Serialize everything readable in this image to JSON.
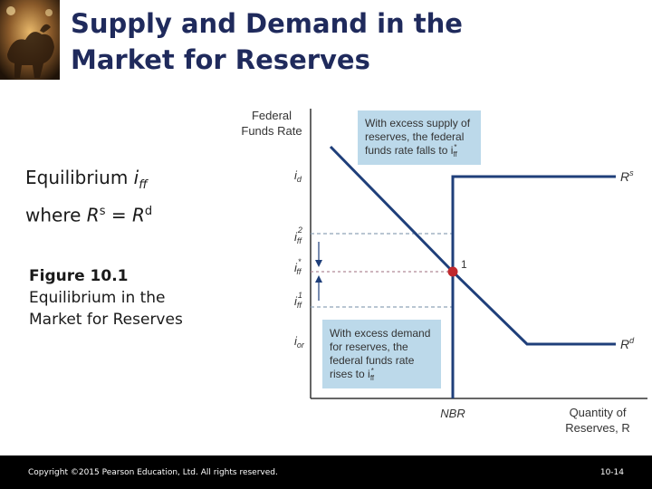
{
  "slide": {
    "title_line1": "Supply and Demand in the",
    "title_line2": "Market for Reserves",
    "title_color": "#1f2a5c",
    "equilibrium_label": "Equilibrium",
    "equilibrium_var": "i",
    "equilibrium_var_sub": "ff",
    "where_label": "where",
    "rs_var": "R",
    "rs_sup": "s",
    "equals": "=",
    "rd_var": "R",
    "rd_sup": "d",
    "figure_number": "Figure 10.1",
    "figure_title_line1": "Equilibrium in the",
    "figure_title_line2": "Market for Reserves"
  },
  "diagram": {
    "y_axis_label_line1": "Federal",
    "y_axis_label_line2": "Funds Rate",
    "x_axis_label_line1": "Quantity of",
    "x_axis_label_line2": "Reserves, R",
    "nbr_label": "NBR",
    "rs_curve_label": "R",
    "rs_curve_sup": "s",
    "rd_curve_label": "R",
    "rd_curve_sup": "d",
    "equilibrium_point_label": "1",
    "y_tick_id": "i",
    "y_tick_id_sub": "d",
    "y_tick_iff2": "i",
    "y_tick_iff2_sub": "ff",
    "y_tick_iff2_sup": "2",
    "y_tick_iffstar": "i",
    "y_tick_iffstar_sub": "ff",
    "y_tick_iffstar_sup": "*",
    "y_tick_iff1": "i",
    "y_tick_iff1_sub": "ff",
    "y_tick_iff1_sup": "1",
    "y_tick_ior": "i",
    "y_tick_ior_sub": "or",
    "box_supply_line1": "With excess supply of",
    "box_supply_line2": "reserves, the federal",
    "box_supply_line3": "funds rate falls to i",
    "box_supply_var_sub": "ff",
    "box_supply_var_sup": "*",
    "box_demand_line1": "With excess demand",
    "box_demand_line2": "for reserves, the",
    "box_demand_line3": "federal funds rate",
    "box_demand_line4": "rises to i",
    "box_demand_var_sub": "ff",
    "box_demand_var_sup": "*",
    "curve_color": "#1f3f7a",
    "point_color": "#c0282d",
    "box_color": "#bcd9ea",
    "dashed_color": "#8fa3b8"
  },
  "footer": {
    "copyright": "Copyright ©2015 Pearson Education, Ltd. All rights reserved.",
    "page_number": "10-14"
  }
}
